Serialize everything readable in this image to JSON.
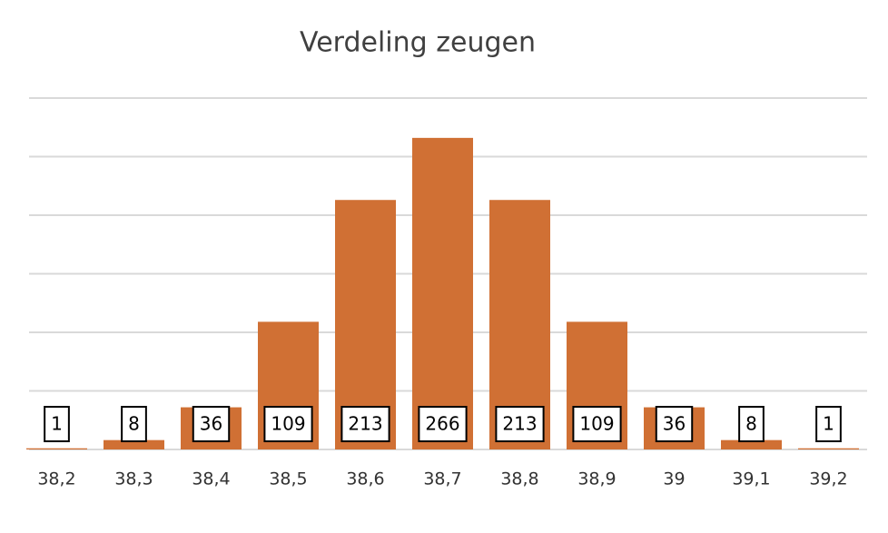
{
  "chart_data": {
    "type": "bar",
    "title": "Verdeling zeugen",
    "categories": [
      "38,2",
      "38,3",
      "38,4",
      "38,5",
      "38,6",
      "38,7",
      "38,8",
      "38,9",
      "39",
      "39,1",
      "39,2"
    ],
    "values": [
      1,
      8,
      36,
      109,
      213,
      266,
      213,
      109,
      36,
      8,
      1
    ],
    "color": "#d07034",
    "ylim": [
      0,
      300
    ],
    "yticks": [
      0,
      50,
      100,
      150,
      200,
      250,
      300
    ],
    "grid": true
  }
}
